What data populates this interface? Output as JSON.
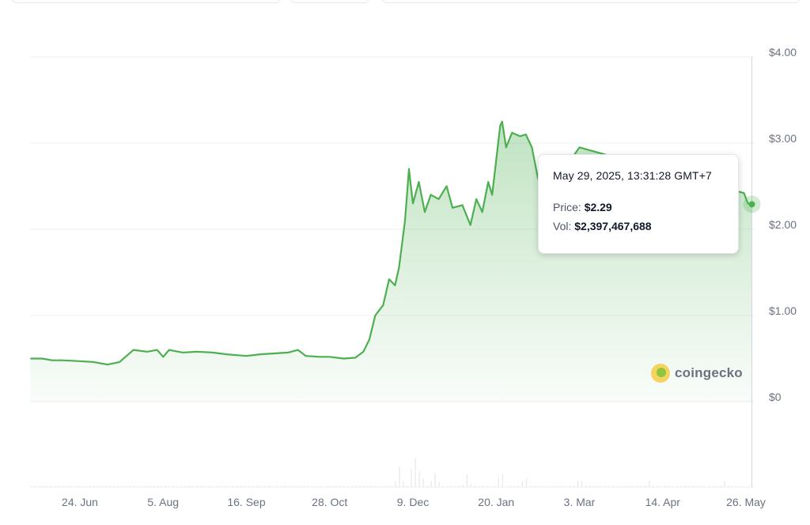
{
  "chart_data": {
    "type": "area",
    "title": "",
    "xlabel": "",
    "ylabel": "",
    "ylim": [
      -1.0,
      4.0
    ],
    "y_ticks": [
      {
        "value": 4,
        "label": "$4.00"
      },
      {
        "value": 3,
        "label": "$3.00"
      },
      {
        "value": 2,
        "label": "$2.00"
      },
      {
        "value": 1,
        "label": "$1.00"
      },
      {
        "value": 0,
        "label": "$0"
      }
    ],
    "x_ticks": [
      {
        "date": "2024-06-24",
        "label": "24. Jun"
      },
      {
        "date": "2024-08-05",
        "label": "5. Aug"
      },
      {
        "date": "2024-09-16",
        "label": "16. Sep"
      },
      {
        "date": "2024-10-28",
        "label": "28. Oct"
      },
      {
        "date": "2024-12-09",
        "label": "9. Dec"
      },
      {
        "date": "2025-01-20",
        "label": "20. Jan"
      },
      {
        "date": "2025-03-03",
        "label": "3. Mar"
      },
      {
        "date": "2025-04-14",
        "label": "14. Apr"
      },
      {
        "date": "2025-05-26",
        "label": "26. May"
      }
    ],
    "grid": true,
    "line_color": "#4caf50",
    "series": [
      {
        "values": [
          [
            "2024-05-30",
            0.5
          ],
          [
            "2024-06-05",
            0.5
          ],
          [
            "2024-06-10",
            0.48
          ],
          [
            "2024-06-15",
            0.48
          ],
          [
            "2024-06-24",
            0.47
          ],
          [
            "2024-07-01",
            0.46
          ],
          [
            "2024-07-08",
            0.43
          ],
          [
            "2024-07-14",
            0.46
          ],
          [
            "2024-07-17",
            0.52
          ],
          [
            "2024-07-21",
            0.6
          ],
          [
            "2024-07-28",
            0.58
          ],
          [
            "2024-08-02",
            0.6
          ],
          [
            "2024-08-05",
            0.52
          ],
          [
            "2024-08-08",
            0.6
          ],
          [
            "2024-08-15",
            0.57
          ],
          [
            "2024-08-22",
            0.58
          ],
          [
            "2024-08-30",
            0.57
          ],
          [
            "2024-09-06",
            0.55
          ],
          [
            "2024-09-16",
            0.53
          ],
          [
            "2024-09-23",
            0.55
          ],
          [
            "2024-09-30",
            0.56
          ],
          [
            "2024-10-07",
            0.57
          ],
          [
            "2024-10-12",
            0.6
          ],
          [
            "2024-10-16",
            0.53
          ],
          [
            "2024-10-23",
            0.52
          ],
          [
            "2024-10-28",
            0.52
          ],
          [
            "2024-11-04",
            0.5
          ],
          [
            "2024-11-10",
            0.51
          ],
          [
            "2024-11-14",
            0.58
          ],
          [
            "2024-11-17",
            0.72
          ],
          [
            "2024-11-20",
            1.0
          ],
          [
            "2024-11-24",
            1.12
          ],
          [
            "2024-11-27",
            1.42
          ],
          [
            "2024-11-30",
            1.35
          ],
          [
            "2024-12-02",
            1.56
          ],
          [
            "2024-12-05",
            2.1
          ],
          [
            "2024-12-07",
            2.7
          ],
          [
            "2024-12-09",
            2.3
          ],
          [
            "2024-12-12",
            2.55
          ],
          [
            "2024-12-15",
            2.2
          ],
          [
            "2024-12-18",
            2.4
          ],
          [
            "2024-12-22",
            2.35
          ],
          [
            "2024-12-26",
            2.5
          ],
          [
            "2024-12-29",
            2.25
          ],
          [
            "2025-01-03",
            2.28
          ],
          [
            "2025-01-07",
            2.05
          ],
          [
            "2025-01-10",
            2.35
          ],
          [
            "2025-01-13",
            2.2
          ],
          [
            "2025-01-16",
            2.55
          ],
          [
            "2025-01-18",
            2.4
          ],
          [
            "2025-01-22",
            3.2
          ],
          [
            "2025-01-23",
            3.25
          ],
          [
            "2025-01-25",
            2.95
          ],
          [
            "2025-01-28",
            3.12
          ],
          [
            "2025-02-01",
            3.08
          ],
          [
            "2025-02-04",
            3.1
          ],
          [
            "2025-02-07",
            2.95
          ],
          [
            "2025-02-10",
            2.6
          ],
          [
            "2025-02-13",
            2.4
          ],
          [
            "2025-02-16",
            2.45
          ],
          [
            "2025-03-03",
            2.95
          ],
          [
            "2025-05-25",
            2.42
          ],
          [
            "2025-05-27",
            2.3
          ],
          [
            "2025-05-29",
            2.29
          ]
        ]
      }
    ],
    "volume": [
      [
        "2024-12-02",
        0.5
      ],
      [
        "2024-12-09",
        1.0
      ],
      [
        "2024-12-12",
        0.6
      ],
      [
        "2024-12-20",
        0.4
      ],
      [
        "2025-01-05",
        0.3
      ],
      [
        "2025-01-22",
        0.45
      ],
      [
        "2025-02-03",
        0.3
      ],
      [
        "2025-03-03",
        0.25
      ],
      [
        "2025-04-07",
        0.15
      ],
      [
        "2025-05-15",
        0.15
      ]
    ],
    "hover_date": "2025-05-29"
  },
  "tooltip": {
    "date": "May 29, 2025, 13:31:28 GMT+7",
    "price_label": "Price:",
    "price_value": "$2.29",
    "vol_label": "Vol:",
    "vol_value": "$2,397,467,688"
  },
  "watermark": {
    "brand": "coingecko",
    "icon": "coingecko-gecko-icon"
  }
}
